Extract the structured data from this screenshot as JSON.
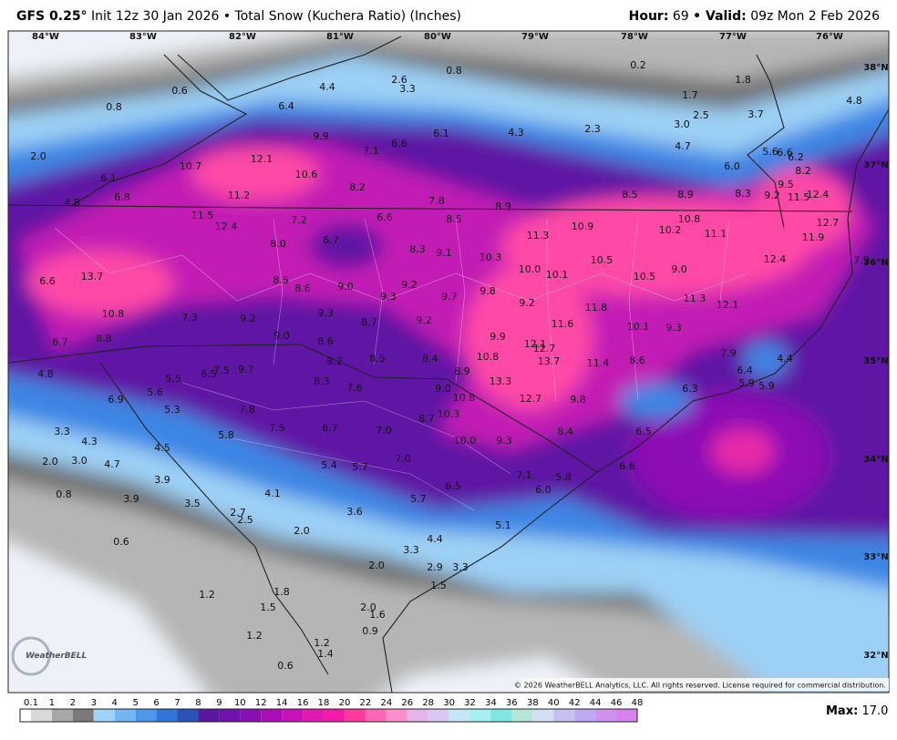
{
  "header": {
    "model": "GFS 0.25°",
    "description": "Init 12z 30 Jan 2026 • Total Snow (Kuchera Ratio) (Inches)",
    "hour_label": "Hour:",
    "hour": "69",
    "valid_label": "• Valid:",
    "valid": "09z Mon 2 Feb 2026"
  },
  "longitudes": [
    "84°W",
    "83°W",
    "82°W",
    "81°W",
    "80°W",
    "79°W",
    "78°W",
    "77°W",
    "76°W"
  ],
  "latitudes": [
    "38°N",
    "37°N",
    "36°N",
    "35°N",
    "34°N",
    "33°N",
    "32°N"
  ],
  "map_labels": [
    "0.6",
    "0.8",
    "4.4",
    "2.6",
    "3.3",
    "0.8",
    "0.2",
    "1.8",
    "1.7",
    "2.5",
    "3.0",
    "3.7",
    "4.8",
    "6.4",
    "9.9",
    "7.1",
    "6.6",
    "6.1",
    "4.3",
    "2.3",
    "4.7",
    "6.0",
    "5.6",
    "6.6",
    "6.2",
    "8.2",
    "2.0",
    "10.7",
    "12.1",
    "10.6",
    "6.1",
    "9.5",
    "8.2",
    "4.8",
    "6.8",
    "11.2",
    "7.8",
    "8.9",
    "8.5",
    "8.9",
    "8.3",
    "9.2",
    "11.5",
    "12.4",
    "11.5",
    "12.4",
    "7.2",
    "6.6",
    "8.5",
    "10.9",
    "10.8",
    "10.2",
    "12.7",
    "11.3",
    "11.1",
    "11.9",
    "6.7",
    "8.0",
    "8.3",
    "9.1",
    "10.3",
    "10.5",
    "12.4",
    "7.9",
    "13.7",
    "10.0",
    "10.1",
    "9.0",
    "10.5",
    "6.6",
    "8.5",
    "8.6",
    "9.0",
    "9.2",
    "9.8",
    "9.3",
    "9.7",
    "11.3",
    "12.1",
    "9.2",
    "11.8",
    "10.8",
    "7.3",
    "9.2",
    "9.3",
    "8.7",
    "9.2",
    "11.6",
    "10.1",
    "9.3",
    "9.9",
    "6.7",
    "8.8",
    "9.0",
    "8.6",
    "12.1",
    "12.7",
    "10.8",
    "13.7",
    "11.4",
    "8.6",
    "7.9",
    "4.4",
    "8.2",
    "8.5",
    "8.4",
    "8.9",
    "6.4",
    "4.8",
    "5.5",
    "6.5",
    "7.5",
    "9.7",
    "8.3",
    "7.6",
    "9.0",
    "13.3",
    "5.9",
    "5.9",
    "5.6",
    "6.9",
    "10.8",
    "12.7",
    "9.8",
    "6.3",
    "5.3",
    "7.8",
    "10.3",
    "8.7",
    "7.5",
    "6.7",
    "7.0",
    "8.4",
    "6.5",
    "3.3",
    "4.3",
    "5.8",
    "10.0",
    "9.3",
    "4.5",
    "2.0",
    "3.0",
    "4.7",
    "7.0",
    "5.4",
    "5.7",
    "6.6",
    "3.9",
    "7.1",
    "5.8",
    "6.5",
    "6.0",
    "0.8",
    "4.1",
    "3.9",
    "5.7",
    "3.5",
    "2.7",
    "2.5",
    "3.6",
    "5.1",
    "2.0",
    "4.4",
    "0.6",
    "3.3",
    "2.0",
    "2.9",
    "3.3",
    "1.5",
    "1.2",
    "1.8",
    "1.5",
    "2.0",
    "1.6",
    "0.9",
    "1.2",
    "1.2",
    "1.4",
    "0.6"
  ],
  "logo": "WeatherBELL",
  "copyright": "© 2026 WeatherBELL Analytics, LLC. All rights reserved. License required for commercial distribution.",
  "colorbar": {
    "labels": [
      0.1,
      1,
      2,
      3,
      4,
      5,
      6,
      7,
      8,
      9,
      10,
      12,
      14,
      16,
      18,
      20,
      22,
      24,
      26,
      28,
      30,
      32,
      34,
      36,
      38,
      40,
      42,
      44,
      46,
      48
    ],
    "colors": [
      "#ffffff",
      "#d9d9d9",
      "#a8a8a8",
      "#7a7a7a",
      "#9fd3f7",
      "#72b6f2",
      "#4d96ea",
      "#3274d8",
      "#2a53b8",
      "#5a18a0",
      "#6f12ab",
      "#8a0fb3",
      "#a80fb7",
      "#c514b7",
      "#de1ab3",
      "#f21ca8",
      "#ff3a9c",
      "#ff66b4",
      "#ff8fc8",
      "#e6b4e8",
      "#d8c8f2",
      "#c6e8f6",
      "#a6f0f0",
      "#80e6df",
      "#b6e6d4",
      "#d2e0f2",
      "#c8c0f0",
      "#bea8f0",
      "#cf92f0",
      "#d682ef"
    ]
  },
  "max_label": "Max:",
  "max_value": "17.0"
}
